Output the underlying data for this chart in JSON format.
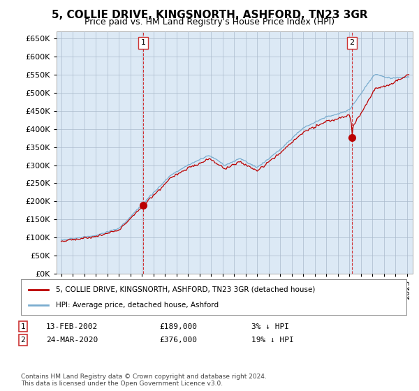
{
  "title": "5, COLLIE DRIVE, KINGSNORTH, ASHFORD, TN23 3GR",
  "subtitle": "Price paid vs. HM Land Registry's House Price Index (HPI)",
  "ylabel_ticks": [
    0,
    50000,
    100000,
    150000,
    200000,
    250000,
    300000,
    350000,
    400000,
    450000,
    500000,
    550000,
    600000,
    650000
  ],
  "ylim": [
    0,
    670000
  ],
  "xlim_start": 1994.6,
  "xlim_end": 2025.5,
  "sale1_year": 2002.12,
  "sale1_price": 189000,
  "sale2_year": 2020.22,
  "sale2_price": 376000,
  "legend_line1": "5, COLLIE DRIVE, KINGSNORTH, ASHFORD, TN23 3GR (detached house)",
  "legend_line2": "HPI: Average price, detached house, Ashford",
  "table_row1": [
    "1",
    "13-FEB-2002",
    "£189,000",
    "3% ↓ HPI"
  ],
  "table_row2": [
    "2",
    "24-MAR-2020",
    "£376,000",
    "19% ↓ HPI"
  ],
  "footnote": "Contains HM Land Registry data © Crown copyright and database right 2024.\nThis data is licensed under the Open Government Licence v3.0.",
  "red_line_color": "#bb0000",
  "blue_line_color": "#7aadcf",
  "plot_bg_color": "#dce9f5",
  "background_color": "#ffffff",
  "grid_color": "#aabbcc",
  "title_fontsize": 11,
  "subtitle_fontsize": 9,
  "tick_label_fontsize": 8
}
